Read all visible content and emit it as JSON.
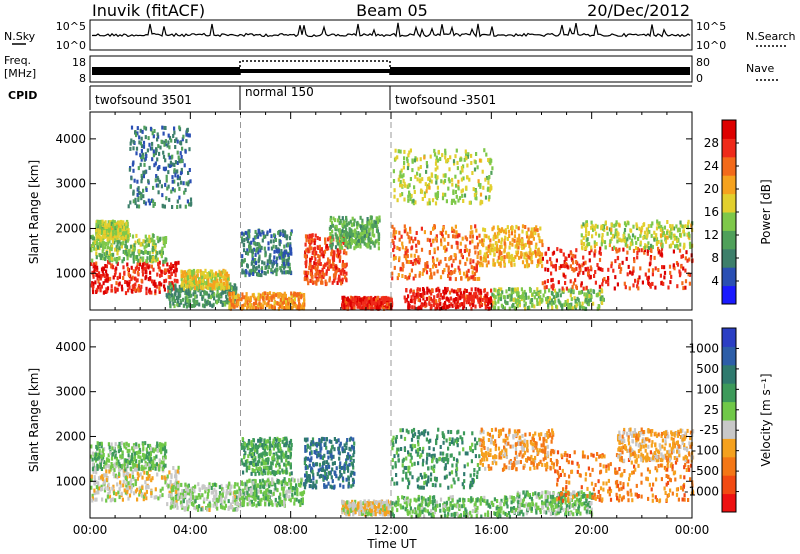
{
  "header": {
    "station": "Inuvik (fitACF)",
    "beam": "Beam 05",
    "date": "20/Dec/2012"
  },
  "summary": {
    "nsky_label": "N.Sky",
    "nsky_ticks": [
      "10^5",
      "10^0"
    ],
    "nsearch_label": "N.Search",
    "nsearch_ticks": [
      "10^5",
      "10^0"
    ],
    "freq_label": "Freq.",
    "freq_unit": "[MHz]",
    "freq_ticks": [
      "18",
      "8"
    ],
    "nave_label": "Nave",
    "nave_ticks": [
      "80",
      "0"
    ],
    "cpid_label": "CPID",
    "cpid_segments": [
      {
        "label": "twofsound 3501",
        "start": 0,
        "end": 6
      },
      {
        "label": "normal 150",
        "start": 6,
        "end": 12
      },
      {
        "label": "twofsound -3501",
        "start": 12,
        "end": 24
      }
    ]
  },
  "chart_data": [
    {
      "type": "heatmap",
      "ylabel": "Slant Range [km]",
      "xlabel": "Time UT",
      "xlim": [
        0,
        24
      ],
      "ylim": [
        180,
        4600
      ],
      "xticks": [
        "00:00",
        "04:00",
        "08:00",
        "12:00",
        "16:00",
        "20:00",
        "00:00"
      ],
      "xtick_values": [
        0,
        4,
        8,
        12,
        16,
        20,
        24
      ],
      "yticks": [
        "1000",
        "2000",
        "3000",
        "4000"
      ],
      "ytick_values": [
        1000,
        2000,
        3000,
        4000
      ],
      "colorbar_label": "Power [dB]",
      "colorbar_ticks": [
        "28",
        "24",
        "20",
        "16",
        "12",
        "8",
        "4"
      ],
      "colorbar_range": [
        0,
        32
      ],
      "colors": [
        "#1a1aff",
        "#2a4fb3",
        "#3d7f6b",
        "#4fa05a",
        "#7ec84a",
        "#e2cf2e",
        "#f5a21e",
        "#f36a1a",
        "#ef2a1a",
        "#dd0000"
      ],
      "blobs": [
        {
          "t0": 0.0,
          "t1": 3.5,
          "r0": 600,
          "r1": 1300,
          "v": 28
        },
        {
          "t0": 0.0,
          "t1": 3.0,
          "r0": 1300,
          "r1": 1900,
          "v": 14
        },
        {
          "t0": 0.2,
          "t1": 1.5,
          "r0": 1800,
          "r1": 2200,
          "v": 16
        },
        {
          "t0": 3.0,
          "t1": 5.8,
          "r0": 300,
          "r1": 800,
          "v": 10
        },
        {
          "t0": 3.6,
          "t1": 5.5,
          "r0": 700,
          "r1": 1100,
          "v": 18
        },
        {
          "t0": 5.5,
          "t1": 8.5,
          "r0": 250,
          "r1": 600,
          "v": 22
        },
        {
          "t0": 6.0,
          "t1": 8.0,
          "r0": 1000,
          "r1": 2000,
          "v": 8
        },
        {
          "t0": 8.5,
          "t1": 10.2,
          "r0": 800,
          "r1": 1900,
          "v": 26
        },
        {
          "t0": 9.5,
          "t1": 11.5,
          "r0": 1600,
          "r1": 2300,
          "v": 12
        },
        {
          "t0": 10.0,
          "t1": 12.0,
          "r0": 250,
          "r1": 500,
          "v": 28
        },
        {
          "t0": 12.0,
          "t1": 15.5,
          "r0": 900,
          "r1": 2100,
          "v": 24
        },
        {
          "t0": 12.5,
          "t1": 16.0,
          "r0": 250,
          "r1": 700,
          "v": 28
        },
        {
          "t0": 15.5,
          "t1": 18.0,
          "r0": 1200,
          "r1": 2100,
          "v": 20
        },
        {
          "t0": 16.0,
          "t1": 20.5,
          "r0": 250,
          "r1": 700,
          "v": 14
        },
        {
          "t0": 18.0,
          "t1": 24.0,
          "r0": 700,
          "r1": 1600,
          "v": 27
        },
        {
          "t0": 19.5,
          "t1": 24.0,
          "r0": 1600,
          "r1": 2200,
          "v": 16
        },
        {
          "t0": 1.5,
          "t1": 4.0,
          "r0": 2500,
          "r1": 4300,
          "v": 8
        },
        {
          "t0": 12.0,
          "t1": 16.0,
          "r0": 2600,
          "r1": 3800,
          "v": 16
        }
      ]
    },
    {
      "type": "heatmap",
      "ylabel": "Slant Range [km]",
      "xlabel": "Time UT",
      "xlim": [
        0,
        24
      ],
      "ylim": [
        180,
        4600
      ],
      "xticks": [
        "00:00",
        "04:00",
        "08:00",
        "12:00",
        "16:00",
        "20:00",
        "00:00"
      ],
      "xtick_values": [
        0,
        4,
        8,
        12,
        16,
        20,
        24
      ],
      "yticks": [
        "1000",
        "2000",
        "3000",
        "4000"
      ],
      "ytick_values": [
        1000,
        2000,
        3000,
        4000
      ],
      "colorbar_label": "Velocity [m s⁻¹]",
      "colorbar_ticks": [
        "1000",
        "500",
        "100",
        "25",
        "-25",
        "-100",
        "-500",
        "-1000"
      ],
      "colorbar_range": [
        -1250,
        1250
      ],
      "colors": [
        "#ee1111",
        "#f24a12",
        "#f47716",
        "#f5a11e",
        "#c8c8c8",
        "#70c848",
        "#3d9a5a",
        "#2f7a6e",
        "#2d5ea8",
        "#2b3fc4"
      ],
      "blobs": [
        {
          "t0": 0.0,
          "t1": 3.5,
          "r0": 600,
          "r1": 1400,
          "v": -150
        },
        {
          "t0": 0.0,
          "t1": 3.0,
          "r0": 1300,
          "r1": 1900,
          "v": 200
        },
        {
          "t0": 3.0,
          "t1": 6.0,
          "r0": 400,
          "r1": 1000,
          "v": 10
        },
        {
          "t0": 6.0,
          "t1": 8.5,
          "r0": 500,
          "r1": 1100,
          "v": 150
        },
        {
          "t0": 6.0,
          "t1": 8.0,
          "r0": 1200,
          "r1": 2000,
          "v": 300
        },
        {
          "t0": 8.5,
          "t1": 10.5,
          "r0": 900,
          "r1": 2000,
          "v": 700
        },
        {
          "t0": 10.0,
          "t1": 12.0,
          "r0": 300,
          "r1": 600,
          "v": -200
        },
        {
          "t0": 12.0,
          "t1": 15.5,
          "r0": 900,
          "r1": 2200,
          "v": 400
        },
        {
          "t0": 12.0,
          "t1": 17.0,
          "r0": 250,
          "r1": 700,
          "v": 200
        },
        {
          "t0": 15.5,
          "t1": 18.5,
          "r0": 1300,
          "r1": 2200,
          "v": -400
        },
        {
          "t0": 17.0,
          "t1": 20.0,
          "r0": 300,
          "r1": 800,
          "v": 150
        },
        {
          "t0": 18.5,
          "t1": 24.0,
          "r0": 600,
          "r1": 1700,
          "v": -600
        },
        {
          "t0": 21.0,
          "t1": 24.0,
          "r0": 1500,
          "r1": 2200,
          "v": -300
        }
      ]
    }
  ]
}
